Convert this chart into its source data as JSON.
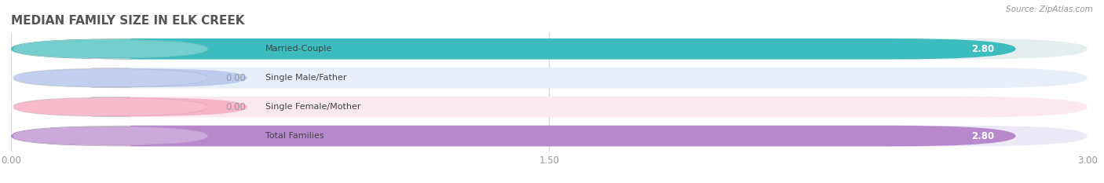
{
  "title": "MEDIAN FAMILY SIZE IN ELK CREEK",
  "source": "Source: ZipAtlas.com",
  "categories": [
    "Married-Couple",
    "Single Male/Father",
    "Single Female/Mother",
    "Total Families"
  ],
  "values": [
    2.8,
    0.0,
    0.0,
    2.8
  ],
  "bar_colors": [
    "#3cbcbc",
    "#aabce8",
    "#f5a0b8",
    "#b888cc"
  ],
  "bar_bg_colors": [
    "#e4eeee",
    "#e8eef8",
    "#fce8f0",
    "#ede8f5"
  ],
  "xlim": [
    0,
    3.0
  ],
  "xticks": [
    0.0,
    1.5,
    3.0
  ],
  "xtick_labels": [
    "0.00",
    "1.50",
    "3.00"
  ],
  "title_fontsize": 11,
  "bar_height": 0.72,
  "background_color": "#ffffff",
  "grid_color": "#d0d8e0"
}
